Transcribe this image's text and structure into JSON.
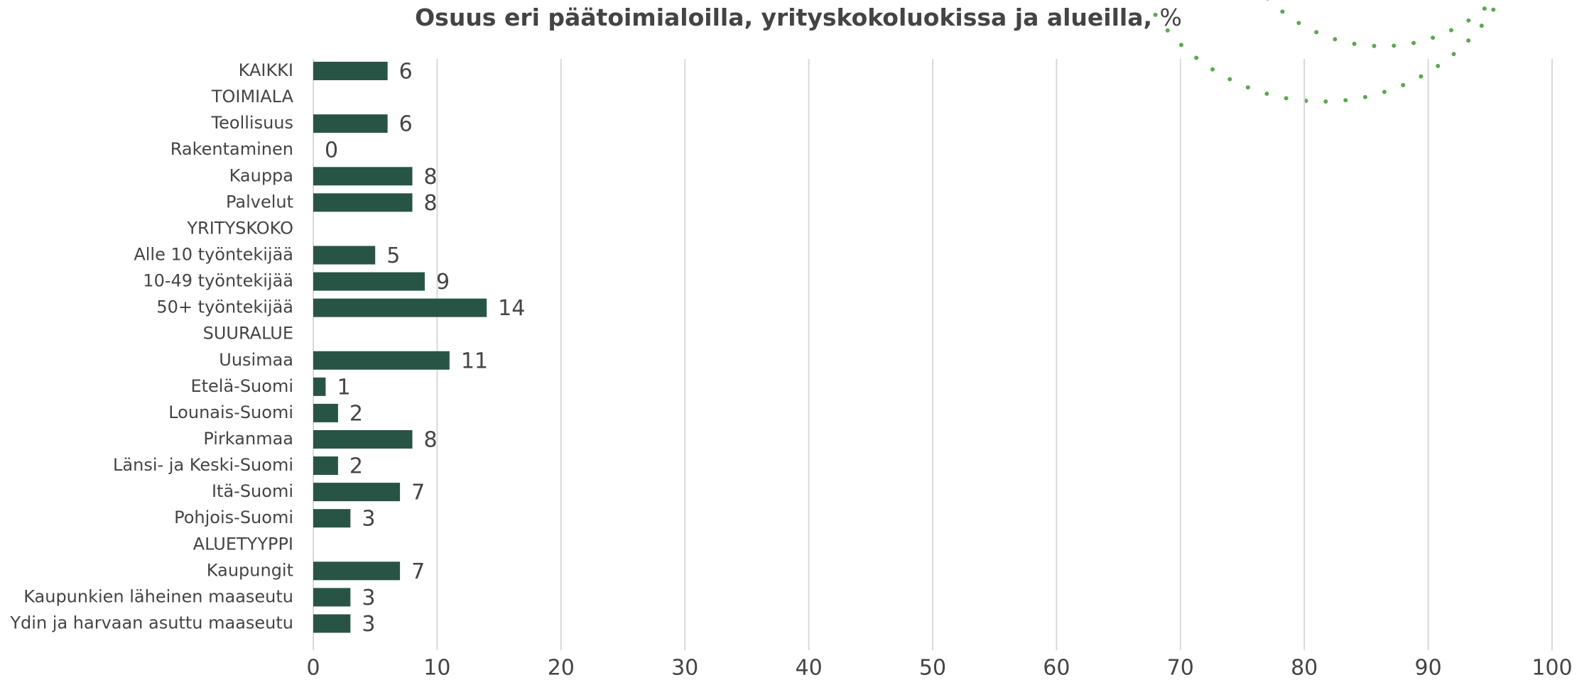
{
  "chart_data": {
    "type": "bar",
    "orientation": "horizontal",
    "title": "Osuus eri päätoimialoilla, yrityskokoluokissa ja alueilla,",
    "unit": "%",
    "categories": [
      "KAIKKI",
      "TOIMIALA",
      "Teollisuus",
      "Rakentaminen",
      "Kauppa",
      "Palvelut",
      "YRITYSKOKO",
      "Alle 10 työntekijää",
      "10-49 työntekijää",
      "50+ työntekijää",
      "SUURALUE",
      "Uusimaa",
      "Etelä-Suomi",
      "Lounais-Suomi",
      "Pirkanmaa",
      "Länsi- ja Keski-Suomi",
      "Itä-Suomi",
      "Pohjois-Suomi",
      "ALUETYYPPI",
      "Kaupungit",
      "Kaupunkien läheinen maaseutu",
      "Ydin ja harvaan asuttu maaseutu"
    ],
    "values": [
      6,
      null,
      6,
      0,
      8,
      8,
      null,
      5,
      9,
      14,
      null,
      11,
      1,
      2,
      8,
      2,
      7,
      3,
      null,
      7,
      3,
      3
    ],
    "color": "#285446",
    "xlim": [
      0,
      100
    ],
    "xticks": [
      0,
      10,
      20,
      30,
      40,
      50,
      60,
      70,
      80,
      90,
      100
    ],
    "grid": true
  }
}
